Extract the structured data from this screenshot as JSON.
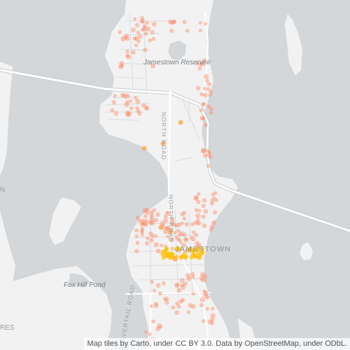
{
  "map": {
    "labels": {
      "reservoir": "Jamestown Reservoir",
      "road_north_1": "NORTH ROAD",
      "road_north_2": "NORTH ROAD",
      "town": "JAMESTOWN",
      "pond": "Fox Hill Pond",
      "road_beavertail": "BEAVERTAIL ROAD",
      "edge_left_1": "RES",
      "edge_left_2": "N"
    },
    "attribution": "Map tiles by Carto, under CC BY 3.0. Data by OpenStreetMap, under ODbL.",
    "colors": {
      "water": "#d4d7da",
      "land": "#f2f2f2",
      "road": "#ffffff",
      "road_outline": "#c8cbce",
      "street": "#d9dbdd",
      "point_light": "#ff8a65",
      "point_dense": "#ffc107",
      "point_mid": "#ffa64d"
    }
  }
}
